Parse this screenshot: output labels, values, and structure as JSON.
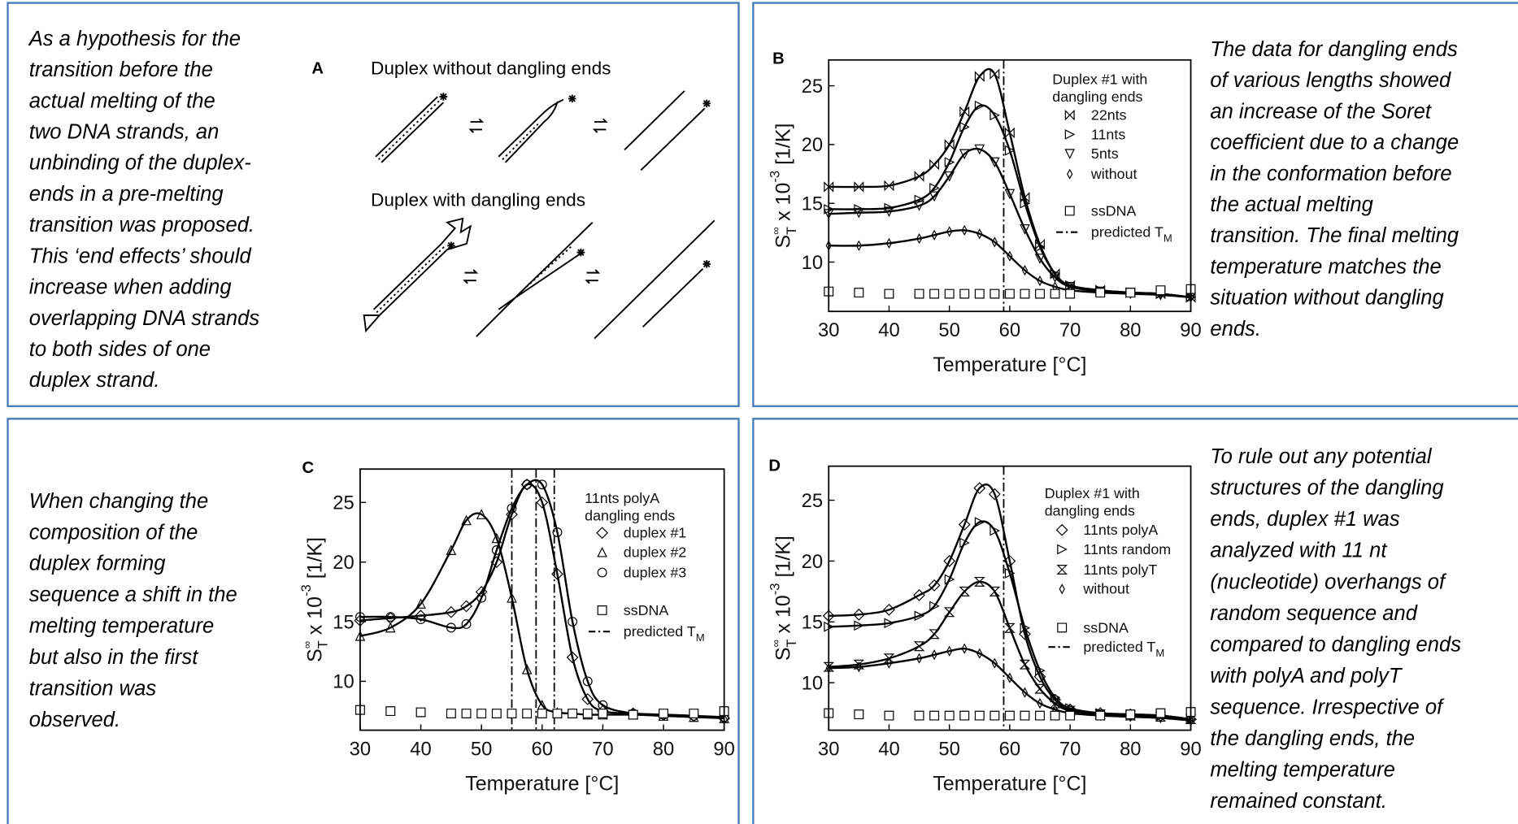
{
  "texts": {
    "panel1": [
      "As a hypothesis for the",
      "transition before the",
      "actual melting of the",
      "two DNA strands, an",
      "unbinding of the duplex-",
      "ends in a pre-melting",
      "transition was proposed.",
      "This ‘end effects’ should",
      "increase when adding",
      "overlapping DNA strands",
      "to both sides of one",
      "duplex strand."
    ],
    "panel2": [
      "The data for dangling ends",
      "of various lengths showed",
      "an increase of the Soret",
      "coefficient due to a change",
      "in the conformation before",
      "the actual melting",
      "transition. The final melting",
      "temperature matches the",
      "situation without dangling",
      "ends."
    ],
    "panel3": [
      "When changing the",
      "composition of the",
      "duplex forming",
      "sequence a shift in the",
      "melting temperature",
      "but also in the first",
      "transition was",
      "observed."
    ],
    "panel4": [
      "To rule out any potential",
      "structures of the dangling",
      "ends, duplex #1 was",
      "analyzed with 11 nt",
      "(nucleotide) overhangs of",
      "random sequence and",
      "compared to dangling ends",
      "with polyA and polyT",
      "sequence. Irrespective of",
      "the dangling ends, the",
      "melting temperature",
      "remained constant."
    ]
  },
  "diagram": {
    "label": "A",
    "top_caption": "Duplex without dangling ends",
    "bottom_caption": "Duplex with dangling ends"
  },
  "chart_data": [
    {
      "type": "line",
      "panel": "B",
      "x": [
        30,
        35,
        40,
        45,
        47.5,
        50,
        52.5,
        55,
        57.5,
        60,
        62.5,
        65,
        67.5,
        70,
        75,
        80,
        85,
        90
      ],
      "xlim": [
        30,
        90
      ],
      "ylim": [
        5.8,
        27.2
      ],
      "xticks": [
        30,
        40,
        50,
        60,
        70,
        80,
        90
      ],
      "yticks": [
        10,
        15,
        20,
        25
      ],
      "xlabel": "Temperature [°C]",
      "ylabel": {
        "base": "S",
        "sup": "∞",
        "sub": "T",
        "mid": " x 10",
        "exp": "-3",
        "unit": " [1/K]"
      },
      "legend_title": [
        "Duplex #1 with",
        "dangling ends"
      ],
      "series": [
        {
          "name": "22nts",
          "marker": "bowtie",
          "color": "#000000",
          "values": [
            16.4,
            16.4,
            16.5,
            17.3,
            18.3,
            20.0,
            22.8,
            25.8,
            26.0,
            21.0,
            15.5,
            11.5,
            9.0,
            8.0,
            7.6,
            7.4,
            7.3,
            7.0
          ]
        },
        {
          "name": "11nts",
          "marker": "triangle-right",
          "color": "#000000",
          "values": [
            14.5,
            14.5,
            14.6,
            15.3,
            16.3,
            18.5,
            21.5,
            23.3,
            22.5,
            19.5,
            15.0,
            11.3,
            9.0,
            8.0,
            7.6,
            7.4,
            7.3,
            7.0
          ]
        },
        {
          "name": "5nts",
          "marker": "triangle-down",
          "color": "#000000",
          "values": [
            14.1,
            14.2,
            14.3,
            14.8,
            15.6,
            17.3,
            19.2,
            19.6,
            18.5,
            15.8,
            12.8,
            10.3,
            8.7,
            7.9,
            7.5,
            7.4,
            7.3,
            7.0
          ]
        },
        {
          "name": "without",
          "marker": "diamond-small",
          "color": "#000000",
          "values": [
            11.4,
            11.4,
            11.6,
            12.0,
            12.3,
            12.6,
            12.7,
            12.4,
            11.7,
            10.5,
            9.3,
            8.4,
            7.9,
            7.6,
            7.4,
            7.3,
            7.2,
            7.0
          ]
        },
        {
          "name": "ssDNA",
          "marker": "square",
          "color": "#000000",
          "line": false,
          "values": [
            7.5,
            7.4,
            7.3,
            7.3,
            7.3,
            7.3,
            7.3,
            7.3,
            7.3,
            7.3,
            7.3,
            7.3,
            7.3,
            7.3,
            7.4,
            7.4,
            7.6,
            7.7
          ]
        }
      ],
      "tm": [
        59
      ],
      "tm_label": "predicted T",
      "tm_label_sub": "M"
    },
    {
      "type": "line",
      "panel": "C",
      "x": [
        30,
        35,
        40,
        45,
        47.5,
        50,
        52.5,
        55,
        57.5,
        60,
        62.5,
        65,
        67.5,
        70,
        75,
        80,
        85,
        90
      ],
      "xlim": [
        30,
        90
      ],
      "ylim": [
        5.9,
        27.8
      ],
      "xticks": [
        30,
        40,
        50,
        60,
        70,
        80,
        90
      ],
      "yticks": [
        10,
        15,
        20,
        25
      ],
      "xlabel": "Temperature [°C]",
      "ylabel": {
        "base": "S",
        "sup": "∞",
        "sub": "T",
        "mid": " x 10",
        "exp": "-3",
        "unit": " [1/K]"
      },
      "legend_title": [
        "11nts polyA",
        "dangling ends"
      ],
      "series": [
        {
          "name": "duplex #1",
          "marker": "diamond",
          "color": "#000000",
          "values": [
            15.1,
            15.3,
            15.5,
            15.8,
            16.3,
            17.5,
            20.0,
            24.0,
            26.5,
            25.0,
            19.0,
            12.0,
            8.5,
            7.5,
            7.3,
            7.2,
            7.1,
            6.9
          ]
        },
        {
          "name": "duplex #2",
          "marker": "triangle-up",
          "color": "#000000",
          "values": [
            13.8,
            14.5,
            16.5,
            21.0,
            23.5,
            24.0,
            22.0,
            17.0,
            11.0,
            8.0,
            7.4,
            7.3,
            7.2,
            7.2,
            7.2,
            7.1,
            7.0,
            6.9
          ]
        },
        {
          "name": "duplex #3",
          "marker": "circle",
          "color": "#000000",
          "values": [
            15.4,
            15.4,
            15.2,
            14.5,
            14.8,
            17.0,
            21.0,
            24.5,
            26.5,
            26.5,
            22.5,
            15.0,
            10.0,
            8.0,
            7.3,
            7.2,
            7.1,
            7.0
          ]
        },
        {
          "name": "ssDNA",
          "marker": "square",
          "color": "#000000",
          "line": false,
          "values": [
            7.6,
            7.5,
            7.4,
            7.3,
            7.3,
            7.3,
            7.3,
            7.3,
            7.3,
            7.3,
            7.3,
            7.3,
            7.3,
            7.3,
            7.2,
            7.3,
            7.3,
            7.5
          ]
        }
      ],
      "tm": [
        55,
        59,
        62
      ],
      "tm_label": "predicted T",
      "tm_label_sub": "M"
    },
    {
      "type": "line",
      "panel": "D",
      "x": [
        30,
        35,
        40,
        45,
        47.5,
        50,
        52.5,
        55,
        57.5,
        60,
        62.5,
        65,
        67.5,
        70,
        75,
        80,
        85,
        90
      ],
      "xlim": [
        30,
        90
      ],
      "ylim": [
        6.1,
        27.8
      ],
      "xticks": [
        30,
        40,
        50,
        60,
        70,
        80,
        90
      ],
      "yticks": [
        10,
        15,
        20,
        25
      ],
      "xlabel": "Temperature [°C]",
      "ylabel": {
        "base": "S",
        "sup": "∞",
        "sub": "T",
        "mid": " x 10",
        "exp": "-3",
        "unit": " [1/K]"
      },
      "legend_title": [
        "Duplex #1 with",
        "dangling ends"
      ],
      "series": [
        {
          "name": "11nts polyA",
          "marker": "diamond",
          "color": "#000000",
          "values": [
            15.5,
            15.6,
            16.0,
            17.2,
            18.0,
            20.0,
            23.0,
            26.0,
            25.5,
            20.0,
            14.0,
            10.5,
            8.6,
            7.8,
            7.5,
            7.4,
            7.3,
            7.0
          ]
        },
        {
          "name": "11nts random",
          "marker": "triangle-right",
          "color": "#000000",
          "values": [
            14.6,
            14.7,
            14.9,
            15.5,
            16.3,
            18.5,
            21.5,
            23.2,
            22.5,
            19.0,
            14.5,
            11.0,
            8.8,
            7.9,
            7.5,
            7.4,
            7.3,
            7.0
          ]
        },
        {
          "name": "11nts polyT",
          "marker": "hourglass",
          "color": "#000000",
          "values": [
            11.3,
            11.5,
            12.0,
            13.0,
            14.0,
            15.8,
            17.5,
            18.3,
            17.5,
            14.5,
            11.5,
            9.5,
            8.3,
            7.7,
            7.4,
            7.3,
            7.2,
            7.0
          ]
        },
        {
          "name": "without",
          "marker": "diamond-small",
          "color": "#000000",
          "values": [
            11.2,
            11.3,
            11.6,
            12.0,
            12.3,
            12.6,
            12.8,
            12.4,
            11.6,
            10.4,
            9.2,
            8.3,
            7.8,
            7.5,
            7.3,
            7.2,
            7.1,
            6.9
          ]
        },
        {
          "name": "ssDNA",
          "marker": "square",
          "color": "#000000",
          "line": false,
          "values": [
            7.5,
            7.4,
            7.3,
            7.3,
            7.3,
            7.3,
            7.3,
            7.3,
            7.3,
            7.3,
            7.3,
            7.3,
            7.3,
            7.3,
            7.3,
            7.4,
            7.5,
            7.6
          ]
        }
      ],
      "tm": [
        59
      ],
      "tm_label": "predicted T",
      "tm_label_sub": "M"
    }
  ]
}
